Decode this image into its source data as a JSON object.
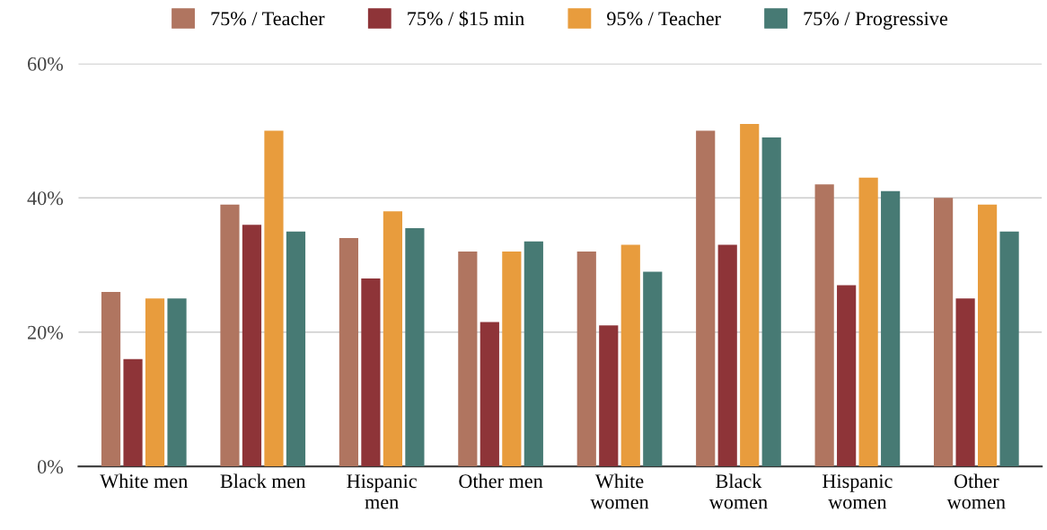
{
  "chart_data": {
    "type": "bar",
    "categories": [
      "White men",
      "Black men",
      "Hispanic\nmen",
      "Other men",
      "White\nwomen",
      "Black\nwomen",
      "Hispanic\nwomen",
      "Other\nwomen"
    ],
    "series": [
      {
        "name": "75% / Teacher",
        "color": "#b07560",
        "values": [
          26,
          39,
          34,
          32,
          32,
          50,
          42,
          40
        ]
      },
      {
        "name": "75% / $15 min",
        "color": "#8e3438",
        "values": [
          16,
          36,
          28,
          21.5,
          21,
          33,
          27,
          25
        ]
      },
      {
        "name": "95% / Teacher",
        "color": "#e89c3d",
        "values": [
          25,
          50,
          38,
          32,
          33,
          51,
          43,
          39
        ]
      },
      {
        "name": "75% / Progressive",
        "color": "#477a74",
        "values": [
          25,
          35,
          35.5,
          33.5,
          29,
          49,
          41,
          35
        ]
      }
    ],
    "ylim": [
      0,
      60
    ],
    "yticks": [
      {
        "value": 0,
        "label": "0%"
      },
      {
        "value": 20,
        "label": "20%"
      },
      {
        "value": 40,
        "label": "40%"
      },
      {
        "value": 60,
        "label": "60%"
      }
    ],
    "grid": "y",
    "legend": "top"
  }
}
